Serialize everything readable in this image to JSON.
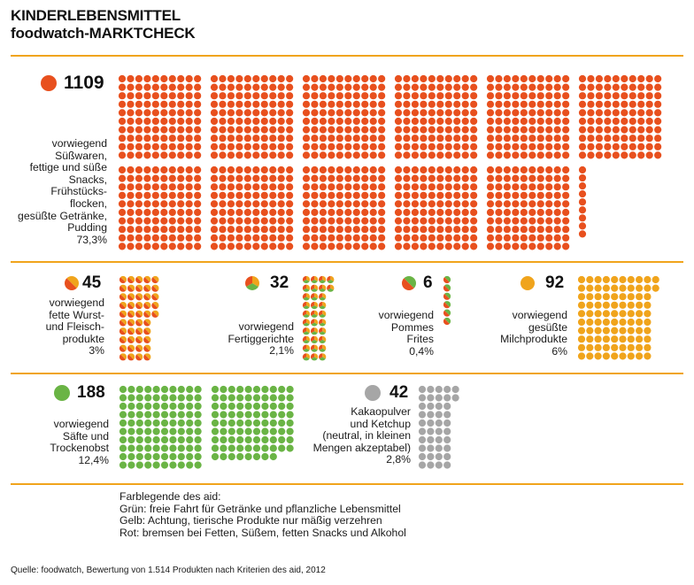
{
  "title": {
    "line1": "KINDERLEBENSMITTEL",
    "line2": "foodwatch-MARKTCHECK"
  },
  "colors": {
    "red": "#e8501e",
    "orange": "#f0a41c",
    "green": "#6ab445",
    "grey": "#a6a6a6",
    "rule": "#f0a41c"
  },
  "chart_data": {
    "type": "unit-dot-chart",
    "title": "KINDERLEBENSMITTEL foodwatch-MARKTCHECK",
    "unit": "1 dot = 1 product",
    "total_products": 1514,
    "categories": [
      {
        "key": "red",
        "count": 1109,
        "count_label": "1109",
        "color": "red",
        "label_lines": [
          "vorwiegend",
          "Süßwaren,",
          "fettige und süße",
          "Snacks,",
          "Frühstücks-",
          "flocken,",
          "gesüßte Getränke,",
          "Pudding"
        ],
        "percent_label": "73,3%"
      },
      {
        "key": "meat",
        "count": 45,
        "count_label": "45",
        "color": "red+orange",
        "label_lines": [
          "vorwiegend",
          "fette Wurst-",
          "und Fleisch-",
          "produkte"
        ],
        "percent_label": "3%"
      },
      {
        "key": "ready",
        "count": 32,
        "count_label": "32",
        "color": "red+orange+green",
        "label_lines": [
          "vorwiegend",
          "Fertiggerichte"
        ],
        "percent_label": "2,1%"
      },
      {
        "key": "fries",
        "count": 6,
        "count_label": "6",
        "color": "red+green",
        "label_lines": [
          "vorwiegend",
          "Pommes",
          "Frites"
        ],
        "percent_label": "0,4%"
      },
      {
        "key": "dairy",
        "count": 92,
        "count_label": "92",
        "color": "orange",
        "label_lines": [
          "vorwiegend",
          "gesüßte",
          "Milchprodukte"
        ],
        "percent_label": "6%"
      },
      {
        "key": "juice",
        "count": 188,
        "count_label": "188",
        "color": "green",
        "label_lines": [
          "vorwiegend",
          "Säfte und",
          "Trockenobst"
        ],
        "percent_label": "12,4%"
      },
      {
        "key": "neutral",
        "count": 42,
        "count_label": "42",
        "color": "grey",
        "label_lines": [
          "Kakaopulver",
          "und Ketchup",
          "(neutral, in kleinen",
          "Mengen akzeptabel)"
        ],
        "percent_label": "2,8%"
      }
    ]
  },
  "legend": {
    "heading": "Farblegende des aid:",
    "lines": [
      "Grün: freie Fahrt für Getränke und pflanzliche Lebensmittel",
      "Gelb: Achtung, tierische Produkte nur mäßig verzehren",
      "Rot: bremsen bei Fetten, Süßem, fetten Snacks und Alkohol"
    ]
  },
  "source": "Quelle: foodwatch, Bewertung von 1.514 Produkten nach Kriterien des aid, 2012"
}
